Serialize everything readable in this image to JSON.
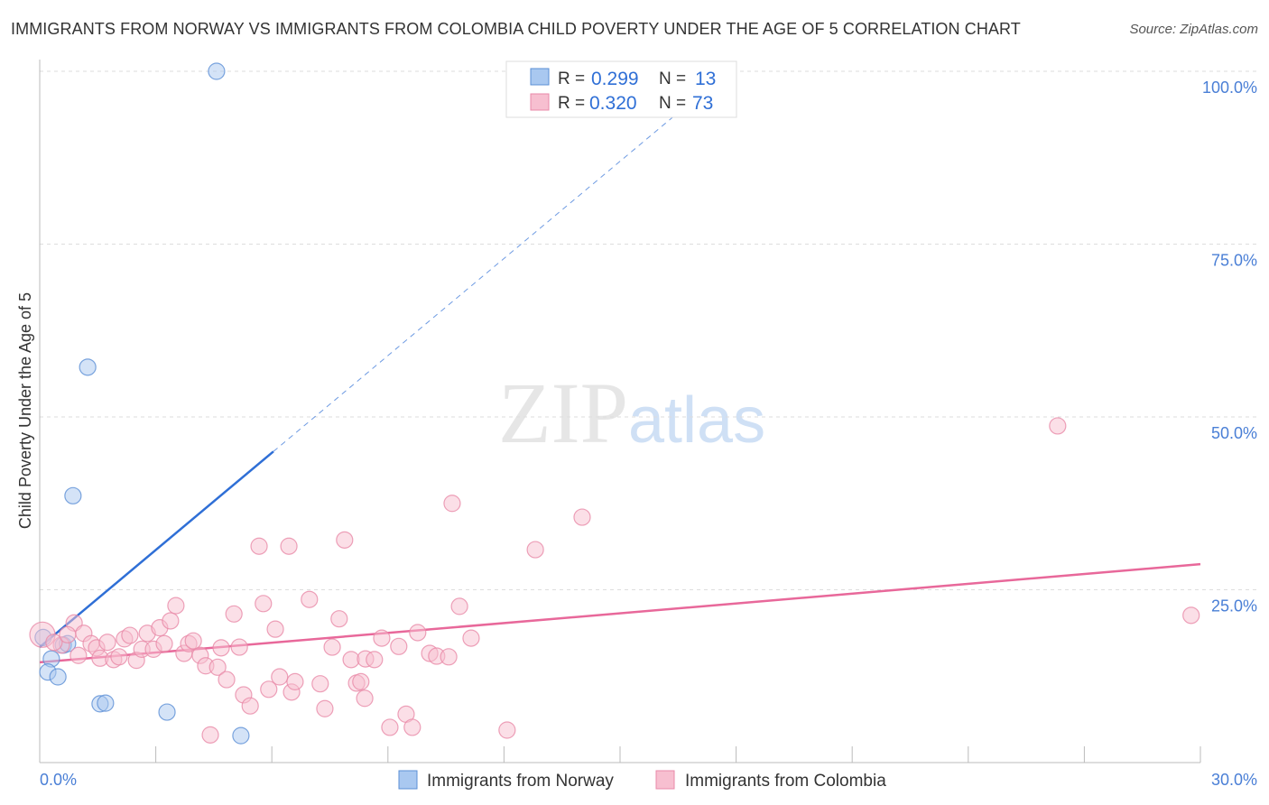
{
  "title": "IMMIGRANTS FROM NORWAY VS IMMIGRANTS FROM COLOMBIA CHILD POVERTY UNDER THE AGE OF 5 CORRELATION CHART",
  "source": "Source: ZipAtlas.com",
  "watermark": "ZIPatlas",
  "chart_data": {
    "type": "scatter",
    "title": "IMMIGRANTS FROM NORWAY VS IMMIGRANTS FROM COLOMBIA CHILD POVERTY UNDER THE AGE OF 5 CORRELATION CHART",
    "xlabel": "",
    "ylabel": "Child Poverty Under the Age of 5",
    "xlim": [
      0,
      30
    ],
    "ylim": [
      0,
      100
    ],
    "x_tick_labels": [
      "0.0%",
      "30.0%"
    ],
    "y_tick_values": [
      25,
      50,
      75,
      100
    ],
    "y_tick_labels": [
      "25.0%",
      "50.0%",
      "75.0%",
      "100.0%"
    ],
    "grid": true,
    "legend_position": "bottom",
    "stats": [
      {
        "r_label": "R =",
        "r": "0.299",
        "n_label": "N =",
        "n": "13"
      },
      {
        "r_label": "R =",
        "r": "0.320",
        "n_label": "N =",
        "n": "73"
      }
    ],
    "series": [
      {
        "name": "Immigrants from Norway",
        "color": "#5b8fd6",
        "fill": "#a9c8f0",
        "trend": {
          "x0": 0,
          "y0": 16.7,
          "x1": 6.04,
          "y1": 45.0,
          "dashed_to_x": 16.5
        },
        "points": [
          [
            4.57,
            100
          ],
          [
            1.24,
            57.2
          ],
          [
            0.86,
            38.6
          ],
          [
            0.09,
            18.1
          ],
          [
            0.61,
            17.0
          ],
          [
            0.72,
            17.2
          ],
          [
            0.3,
            15.0
          ],
          [
            0.21,
            13.1
          ],
          [
            0.47,
            12.4
          ],
          [
            1.56,
            8.5
          ],
          [
            1.7,
            8.6
          ],
          [
            3.29,
            7.3
          ],
          [
            5.2,
            3.9
          ]
        ]
      },
      {
        "name": "Immigrants from Colombia",
        "color": "#e88aa8",
        "fill": "#f7bfd0",
        "trend": {
          "x0": 0,
          "y0": 14.5,
          "x1": 30,
          "y1": 28.7
        },
        "points": [
          [
            0.07,
            18.5
          ],
          [
            0.89,
            20.2
          ],
          [
            1.14,
            18.7
          ],
          [
            0.56,
            17.0
          ],
          [
            0.37,
            17.4
          ],
          [
            1.33,
            17.2
          ],
          [
            1.47,
            16.6
          ],
          [
            1.56,
            15.1
          ],
          [
            1.75,
            17.4
          ],
          [
            1.91,
            14.9
          ],
          [
            2.05,
            15.3
          ],
          [
            2.19,
            17.9
          ],
          [
            2.33,
            18.4
          ],
          [
            2.5,
            14.8
          ],
          [
            2.64,
            16.4
          ],
          [
            2.78,
            18.7
          ],
          [
            2.94,
            16.4
          ],
          [
            3.1,
            19.5
          ],
          [
            3.22,
            17.2
          ],
          [
            3.38,
            20.5
          ],
          [
            3.52,
            22.7
          ],
          [
            3.73,
            15.8
          ],
          [
            3.85,
            17.2
          ],
          [
            3.97,
            17.6
          ],
          [
            4.15,
            15.5
          ],
          [
            4.29,
            14.0
          ],
          [
            4.6,
            13.8
          ],
          [
            4.69,
            16.6
          ],
          [
            4.83,
            12.0
          ],
          [
            5.02,
            21.5
          ],
          [
            5.16,
            16.7
          ],
          [
            5.27,
            9.8
          ],
          [
            5.44,
            8.2
          ],
          [
            5.67,
            31.3
          ],
          [
            5.78,
            23.0
          ],
          [
            5.92,
            10.6
          ],
          [
            6.09,
            19.3
          ],
          [
            6.2,
            12.4
          ],
          [
            6.44,
            31.3
          ],
          [
            6.51,
            10.2
          ],
          [
            6.6,
            11.7
          ],
          [
            6.97,
            23.6
          ],
          [
            7.25,
            11.4
          ],
          [
            7.37,
            7.8
          ],
          [
            7.56,
            16.7
          ],
          [
            7.74,
            20.8
          ],
          [
            7.88,
            32.2
          ],
          [
            8.05,
            14.9
          ],
          [
            8.19,
            11.5
          ],
          [
            8.3,
            11.7
          ],
          [
            8.4,
            9.3
          ],
          [
            8.42,
            15.0
          ],
          [
            8.65,
            14.9
          ],
          [
            8.84,
            18.0
          ],
          [
            9.05,
            5.1
          ],
          [
            9.28,
            16.8
          ],
          [
            9.47,
            7.0
          ],
          [
            9.63,
            5.1
          ],
          [
            9.77,
            18.8
          ],
          [
            10.08,
            15.8
          ],
          [
            10.26,
            15.4
          ],
          [
            10.57,
            15.3
          ],
          [
            10.66,
            37.5
          ],
          [
            10.85,
            22.6
          ],
          [
            11.15,
            18.0
          ],
          [
            12.08,
            4.7
          ],
          [
            12.81,
            30.8
          ],
          [
            14.02,
            35.5
          ],
          [
            26.31,
            48.7
          ],
          [
            29.76,
            21.3
          ],
          [
            1.0,
            15.5
          ],
          [
            0.72,
            18.5
          ],
          [
            4.41,
            4.0
          ]
        ]
      }
    ]
  }
}
